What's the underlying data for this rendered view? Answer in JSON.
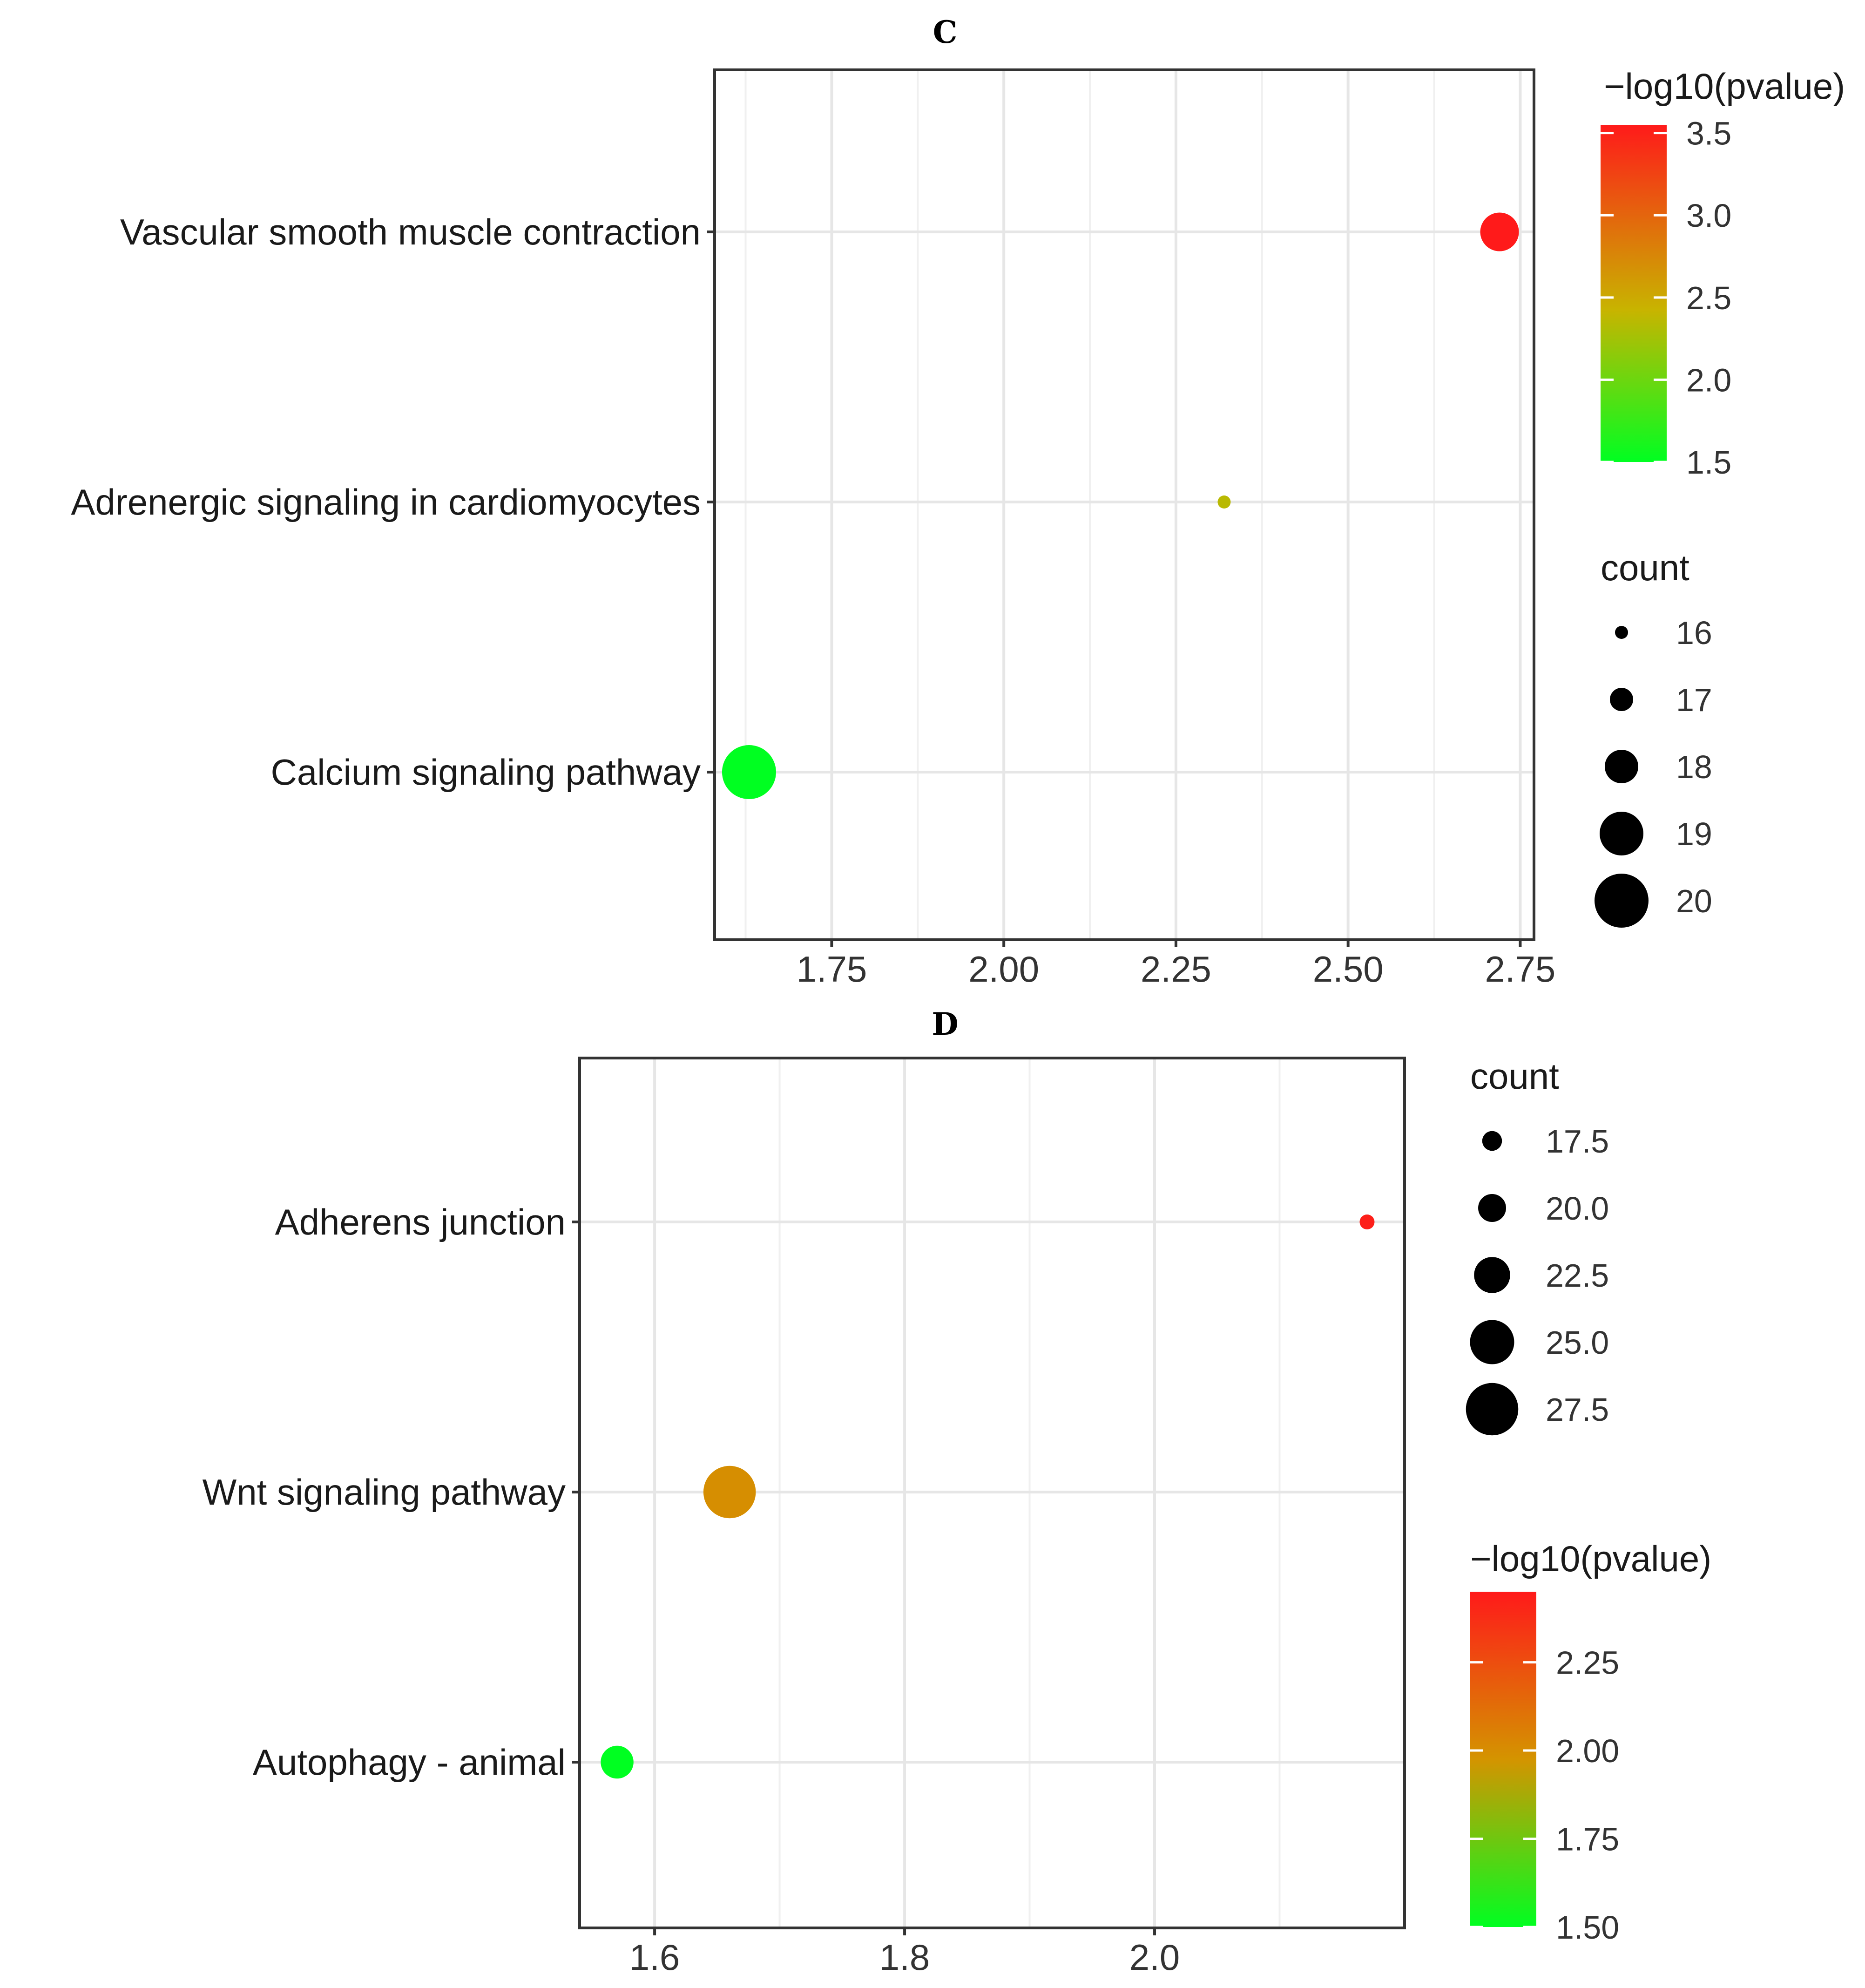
{
  "chart_data": [
    {
      "panel": "C",
      "type": "scatter",
      "title": "C",
      "xlim": [
        1.58,
        2.77
      ],
      "x_ticks": [
        "1.75",
        "2.00",
        "2.25",
        "2.50",
        "2.75"
      ],
      "x_tick_values": [
        1.75,
        2.0,
        2.25,
        2.5,
        2.75
      ],
      "categories": [
        "Vascular smooth muscle contraction",
        "Adrenergic signaling in cardiomyocytes",
        "Calcium signaling pathway"
      ],
      "points": [
        {
          "term": "Vascular smooth muscle contraction",
          "x": 2.72,
          "count": 18.5,
          "neglog10p": 3.55
        },
        {
          "term": "Adrenergic signaling in cardiomyocytes",
          "x": 2.32,
          "count": 16,
          "neglog10p": 2.45
        },
        {
          "term": "Calcium signaling pathway",
          "x": 1.63,
          "count": 20,
          "neglog10p": 1.5
        }
      ],
      "color_legend": {
        "title": "−log10(pvalue)",
        "ticks": [
          "3.5",
          "3.0",
          "2.5",
          "2.0",
          "1.5"
        ],
        "tick_values": [
          3.5,
          3.0,
          2.5,
          2.0,
          1.5
        ],
        "range": [
          1.5,
          3.55
        ],
        "low_color": "#00ff21",
        "mid_color": "#c8b400",
        "high_color": "#ff1a1a"
      },
      "size_legend": {
        "title": "count",
        "labels": [
          "16",
          "17",
          "18",
          "19",
          "20"
        ],
        "values": [
          16,
          17,
          18,
          19,
          20
        ],
        "range": [
          16,
          20
        ]
      }
    },
    {
      "panel": "D",
      "type": "scatter",
      "title": "D",
      "xlim": [
        1.54,
        2.2
      ],
      "x_ticks": [
        "1.6",
        "1.8",
        "2.0"
      ],
      "x_tick_values": [
        1.6,
        1.8,
        2.0
      ],
      "categories": [
        "Adherens junction",
        "Wnt signaling pathway",
        "Autophagy -  animal"
      ],
      "points": [
        {
          "term": "Adherens junction",
          "x": 2.17,
          "count": 16,
          "neglog10p": 2.43
        },
        {
          "term": "Wnt signaling pathway",
          "x": 1.66,
          "count": 27.5,
          "neglog10p": 2.0
        },
        {
          "term": "Autophagy -  animal",
          "x": 1.57,
          "count": 21.5,
          "neglog10p": 1.5
        }
      ],
      "size_legend": {
        "title": "count",
        "labels": [
          "17.5",
          "20.0",
          "22.5",
          "25.0",
          "27.5"
        ],
        "values": [
          17.5,
          20.0,
          22.5,
          25.0,
          27.5
        ],
        "range": [
          16,
          28
        ]
      },
      "color_legend": {
        "title": "−log10(pvalue)",
        "ticks": [
          "2.25",
          "2.00",
          "1.75",
          "1.50"
        ],
        "tick_values": [
          2.25,
          2.0,
          1.75,
          1.5
        ],
        "range": [
          1.5,
          2.45
        ],
        "low_color": "#00ff21",
        "mid_color": "#d49400",
        "high_color": "#ff1a1a"
      }
    }
  ]
}
